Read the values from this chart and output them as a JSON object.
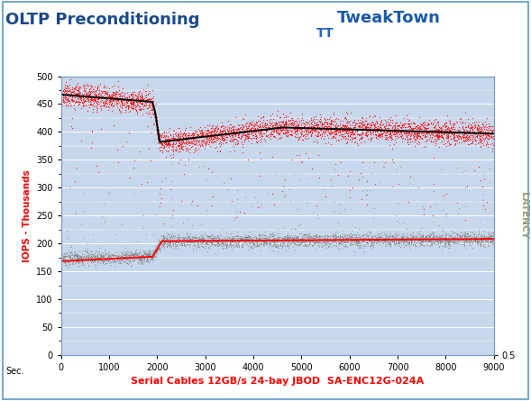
{
  "title": "OLTP Preconditioning",
  "title_color": "#1a4a8a",
  "xlabel": "Serial Cables 12GB/s 24-bay JBOD  SA-ENC12G-024A",
  "ylabel_left": "IOPS - Thousands",
  "ylabel_right": "LATENCY",
  "xlabel_sec": "Sec.",
  "x_min": 0,
  "x_max": 9000,
  "y_min": 0,
  "y_max": 500,
  "x_ticks": [
    0,
    1000,
    2000,
    3000,
    4000,
    5000,
    6000,
    7000,
    8000,
    9000
  ],
  "y_ticks": [
    0,
    50,
    100,
    150,
    200,
    250,
    300,
    350,
    400,
    450,
    500
  ],
  "outer_bg": "#ffffff",
  "plot_bg_color": "#c8d8ec",
  "xlabel_color": "#ff0000",
  "ylabel_left_color": "#ff0000",
  "ylabel_right_color": "#9a9a60",
  "grid_color": "#ffffff",
  "iops_scatter_color": "#ff0000",
  "iops_line_color": "#000000",
  "lat_scatter_color": "#808080",
  "lat_line_color": "#ff0000",
  "n_iops": 4000,
  "n_lat": 4000,
  "seed": 42
}
